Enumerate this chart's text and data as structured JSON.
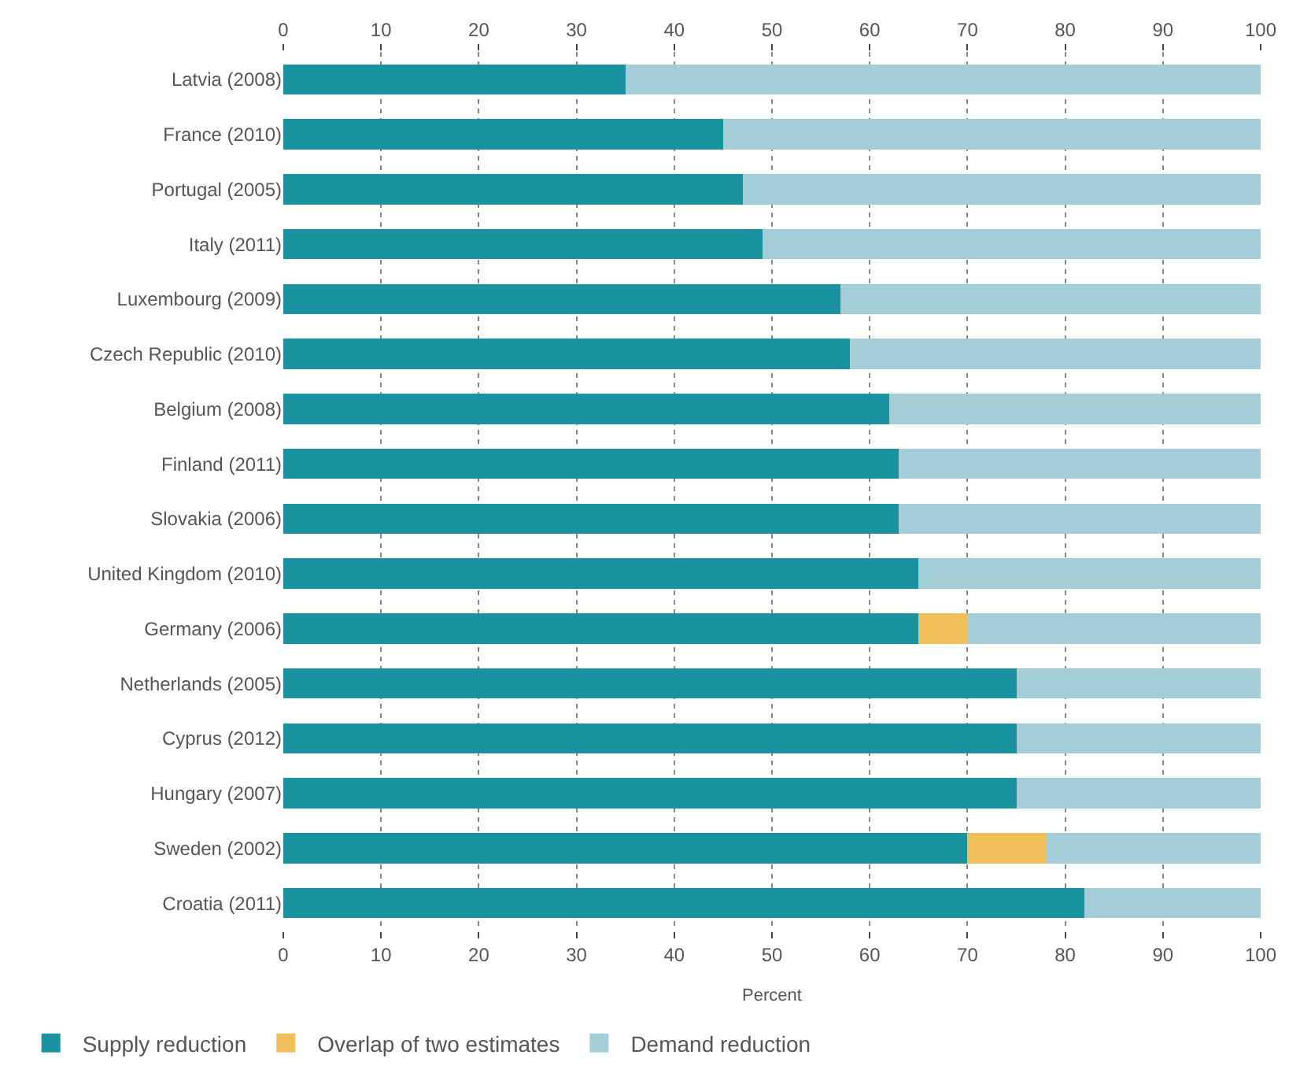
{
  "chart_data": {
    "type": "bar",
    "orientation": "horizontal",
    "stacked": true,
    "xlabel": "Percent",
    "categories": [
      "Latvia (2008)",
      "France (2010)",
      "Portugal (2005)",
      "Italy (2011)",
      "Luxembourg (2009)",
      "Czech Republic (2010)",
      "Belgium (2008)",
      "Finland (2011)",
      "Slovakia (2006)",
      "United Kingdom (2010)",
      "Germany (2006)",
      "Netherlands (2005)",
      "Cyprus (2012)",
      "Hungary (2007)",
      "Sweden (2002)",
      "Croatia (2011)"
    ],
    "series": [
      {
        "name": "Supply reduction",
        "color": "#1a93a0",
        "values": [
          35,
          45,
          47,
          49,
          57,
          58,
          62,
          63,
          63,
          65,
          65,
          75,
          75,
          75,
          70,
          82
        ]
      },
      {
        "name": "Overlap of two estimates",
        "color": "#f0bf5a",
        "values": [
          null,
          null,
          null,
          null,
          null,
          null,
          null,
          null,
          null,
          null,
          5,
          null,
          null,
          null,
          8,
          null
        ]
      },
      {
        "name": "Demand reduction",
        "color": "#a3ced8",
        "values": [
          65,
          55,
          53,
          51,
          43,
          42,
          38,
          37,
          37,
          35,
          30,
          25,
          25,
          25,
          22,
          18
        ]
      }
    ],
    "xlim": [
      0,
      100
    ],
    "xticks": [
      0,
      10,
      20,
      30,
      40,
      50,
      60,
      70,
      80,
      90,
      100
    ],
    "x2lim": [
      0,
      100
    ],
    "x2ticks": [
      0,
      10,
      20,
      30,
      40,
      50,
      60,
      70,
      80,
      90,
      100
    ],
    "grid": "x",
    "legend": "bottom left"
  }
}
